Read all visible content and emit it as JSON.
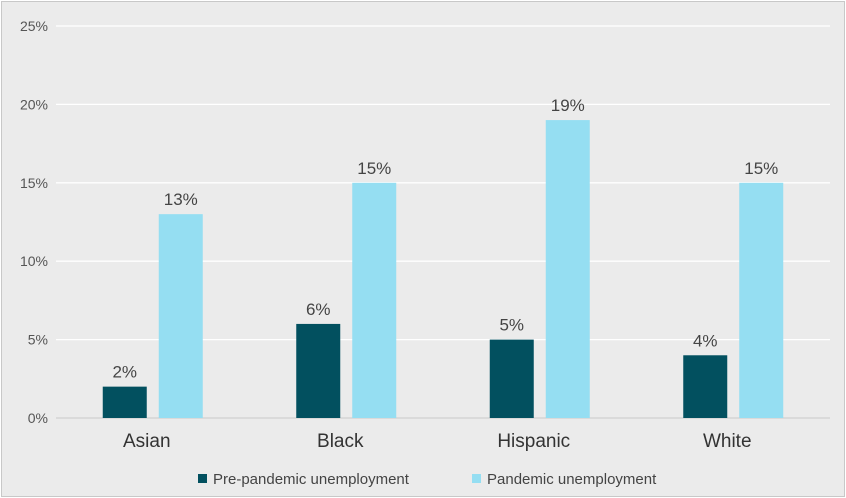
{
  "chart_data": {
    "type": "bar",
    "categories": [
      "Asian",
      "Black",
      "Hispanic",
      "White"
    ],
    "series": [
      {
        "name": "Pre-pandemic unemployment",
        "color": "#02505f",
        "values": [
          2,
          6,
          5,
          4
        ],
        "labels": [
          "2%",
          "6%",
          "5%",
          "4%"
        ]
      },
      {
        "name": "Pandemic unemployment",
        "color": "#95def2",
        "values": [
          13,
          15,
          19,
          15
        ],
        "labels": [
          "13%",
          "15%",
          "19%",
          "15%"
        ]
      }
    ],
    "ylim": [
      0,
      25
    ],
    "yticks": [
      0,
      5,
      10,
      15,
      20,
      25
    ],
    "ytick_labels": [
      "0%",
      "5%",
      "10%",
      "15%",
      "20%",
      "25%"
    ],
    "title": "",
    "xlabel": "",
    "ylabel": "",
    "grid": true,
    "gridline_color": "#ffffff",
    "background_color": "#ebebeb",
    "legend_position": "bottom-center"
  }
}
